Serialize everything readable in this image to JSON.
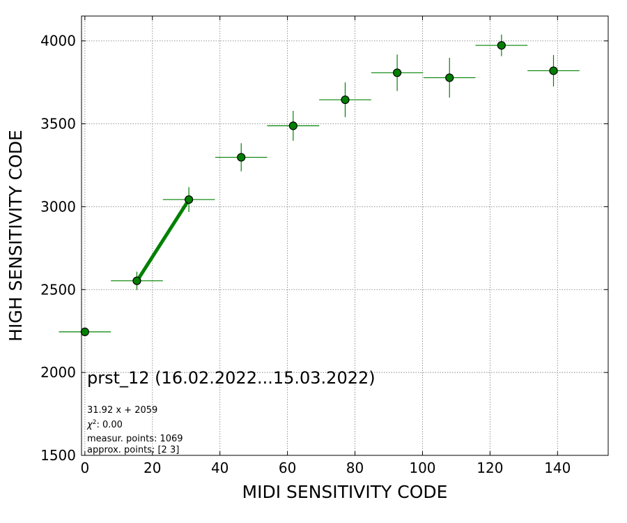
{
  "chart_data": {
    "type": "scatter",
    "xlabel": "MIDI SENSITIVITY CODE",
    "ylabel": "HIGH SENSITIVITY CODE",
    "xlim": [
      -1,
      155
    ],
    "ylim": [
      1500,
      4150
    ],
    "xticks": [
      0,
      20,
      40,
      60,
      80,
      100,
      120,
      140
    ],
    "yticks": [
      1500,
      2000,
      2500,
      3000,
      3500,
      4000
    ],
    "grid": true,
    "series": [
      {
        "marker_color": "#008000",
        "marker_edge": "#000000",
        "errorbar_color": "#008000",
        "points": [
          {
            "x": 0.0,
            "y": 2245,
            "xerr": 7.7,
            "yerr": 0
          },
          {
            "x": 15.4,
            "y": 2553,
            "xerr": 7.7,
            "yerr": 55
          },
          {
            "x": 30.8,
            "y": 3043,
            "xerr": 7.7,
            "yerr": 75
          },
          {
            "x": 46.3,
            "y": 3298,
            "xerr": 7.7,
            "yerr": 85
          },
          {
            "x": 61.7,
            "y": 3488,
            "xerr": 7.7,
            "yerr": 90
          },
          {
            "x": 77.1,
            "y": 3645,
            "xerr": 7.7,
            "yerr": 105
          },
          {
            "x": 92.5,
            "y": 3808,
            "xerr": 7.7,
            "yerr": 110
          },
          {
            "x": 108.0,
            "y": 3778,
            "xerr": 7.7,
            "yerr": 120
          },
          {
            "x": 123.4,
            "y": 3973,
            "xerr": 7.7,
            "yerr": 65
          },
          {
            "x": 138.8,
            "y": 3820,
            "xerr": 7.7,
            "yerr": 95
          }
        ]
      }
    ],
    "fit": {
      "color": "#008000",
      "slope": 31.92,
      "intercept": 2059,
      "x_range": [
        15.4,
        30.8
      ]
    },
    "annotations": {
      "title": "prst_12 (16.02.2022...15.03.2022)",
      "fit_equation": "31.92 x + 2059",
      "chi2_label": "χ",
      "chi2_value": ": 0.00",
      "measur_points": "measur. points: 1069",
      "approx_points": "approx. points: [2 3]"
    }
  }
}
